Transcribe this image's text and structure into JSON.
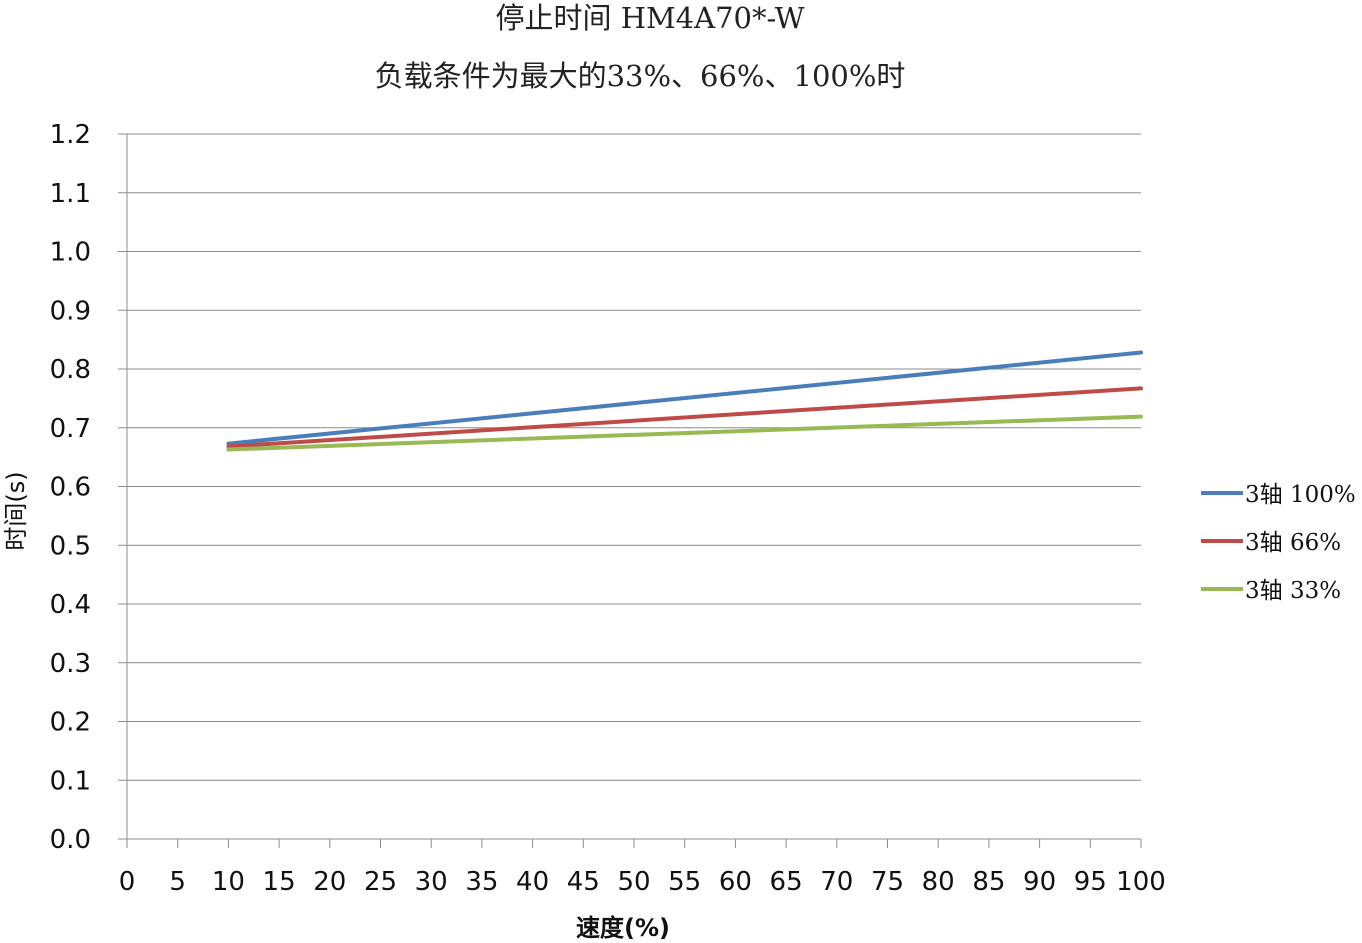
{
  "chart_data": {
    "type": "line",
    "title": "停止时间 HM4A70*-W",
    "subtitle": "负载条件为最大的33%、66%、100%时",
    "xlabel": "速度(%)",
    "ylabel": "时间(s)",
    "xlim": [
      0,
      100
    ],
    "ylim": [
      0,
      1.2
    ],
    "x_ticks": [
      0,
      5,
      10,
      15,
      20,
      25,
      30,
      35,
      40,
      45,
      50,
      55,
      60,
      65,
      70,
      75,
      80,
      85,
      90,
      95,
      100
    ],
    "y_ticks": [
      "0.0",
      "0.1",
      "0.2",
      "0.3",
      "0.4",
      "0.5",
      "0.6",
      "0.7",
      "0.8",
      "0.9",
      "1.0",
      "1.1",
      "1.2"
    ],
    "grid": "horizontal",
    "legend_position": "right",
    "series": [
      {
        "name": "3轴 100%",
        "color": "#4a7ebb",
        "x": [
          10,
          100
        ],
        "y": [
          0.673,
          0.828
        ]
      },
      {
        "name": "3轴 66%",
        "color": "#be4b48",
        "x": [
          10,
          100
        ],
        "y": [
          0.668,
          0.767
        ]
      },
      {
        "name": "3轴 33%",
        "color": "#98b954",
        "x": [
          10,
          100
        ],
        "y": [
          0.663,
          0.719
        ]
      }
    ]
  }
}
